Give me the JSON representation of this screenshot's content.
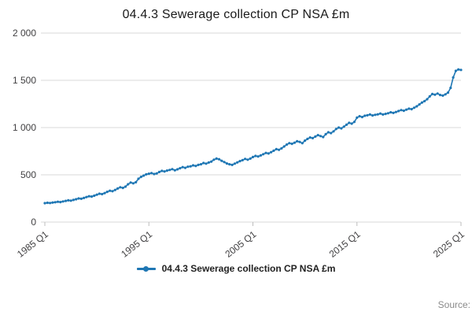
{
  "title": "04.4.3 Sewerage collection CP NSA £m",
  "legend": {
    "label": "04.4.3 Sewerage collection CP NSA £m"
  },
  "source_label": "Source:",
  "colors": {
    "line": "#1f77b4",
    "grid": "#d9d9d9",
    "axis_text": "#414042",
    "title_text": "#1a1a1a"
  },
  "chart_data": {
    "type": "line",
    "title": "04.4.3 Sewerage collection CP NSA £m",
    "xlabel": "",
    "ylabel": "",
    "x_start": "1985 Q1",
    "x_end": "2025 Q1",
    "frequency": "quarterly",
    "x_tick_labels": [
      "1985 Q1",
      "1995 Q1",
      "2005 Q1",
      "2015 Q1",
      "2025 Q1"
    ],
    "x_tick_indices": [
      0,
      40,
      80,
      120,
      160
    ],
    "y_ticks": [
      0,
      500,
      1000,
      1500,
      2000
    ],
    "y_tick_labels": [
      "0",
      "500",
      "1 000",
      "1 500",
      "2 000"
    ],
    "ylim": [
      0,
      2000
    ],
    "grid": "horizontal",
    "legend_position": "bottom",
    "series": [
      {
        "name": "04.4.3 Sewerage collection CP NSA £m",
        "values": [
          200,
          204,
          202,
          207,
          210,
          215,
          212,
          218,
          224,
          230,
          227,
          234,
          242,
          250,
          247,
          255,
          265,
          273,
          270,
          279,
          290,
          300,
          296,
          307,
          320,
          332,
          327,
          340,
          355,
          368,
          362,
          375,
          400,
          418,
          410,
          422,
          458,
          478,
          492,
          505,
          512,
          518,
          508,
          515,
          530,
          542,
          536,
          545,
          552,
          560,
          548,
          558,
          570,
          582,
          574,
          586,
          590,
          600,
          594,
          605,
          612,
          625,
          618,
          630,
          640,
          660,
          672,
          665,
          648,
          635,
          620,
          612,
          605,
          618,
          632,
          645,
          655,
          668,
          660,
          672,
          688,
          700,
          694,
          705,
          718,
          732,
          726,
          740,
          755,
          772,
          765,
          780,
          800,
          820,
          835,
          828,
          840,
          855,
          848,
          835,
          862,
          880,
          895,
          888,
          905,
          920,
          910,
          900,
          930,
          950,
          942,
          960,
          985,
          1000,
          992,
          1010,
          1030,
          1050,
          1042,
          1060,
          1105,
          1120,
          1112,
          1125,
          1130,
          1138,
          1128,
          1135,
          1140,
          1148,
          1138,
          1145,
          1152,
          1162,
          1155,
          1165,
          1175,
          1185,
          1178,
          1190,
          1200,
          1195,
          1210,
          1225,
          1245,
          1265,
          1280,
          1300,
          1330,
          1355,
          1348,
          1360,
          1345,
          1338,
          1352,
          1370,
          1420,
          1530,
          1600,
          1615,
          1610
        ]
      }
    ]
  }
}
